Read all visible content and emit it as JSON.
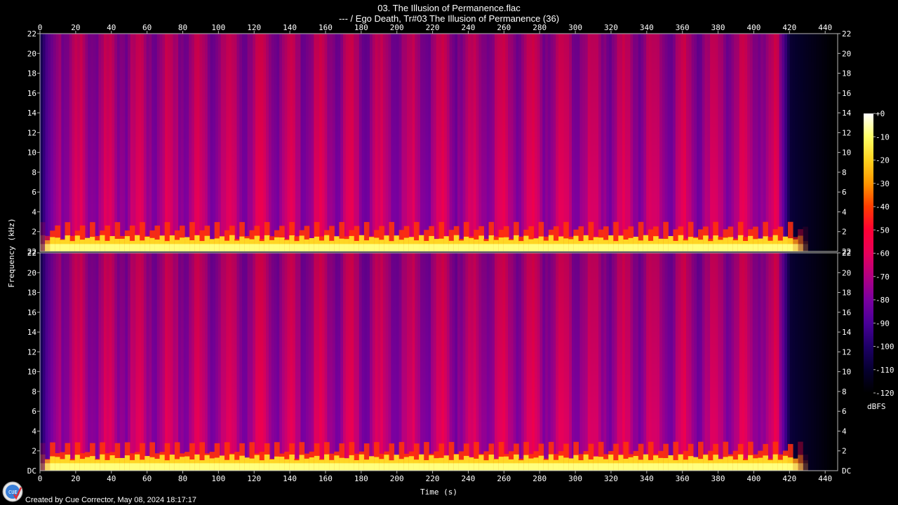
{
  "title": "03. The Illusion of Permanence.flac",
  "subtitle": "--- / Ego Death, Tr#03 The Illusion of Permanence (36)",
  "footer": "Created by Cue Corrector, May 08, 2024 18:17:17",
  "logo_text": "CUE",
  "chart_data": {
    "type": "heatmap",
    "xlabel": "Time (s)",
    "ylabel": "Frequency (kHz)",
    "x_ticks": [
      0,
      20,
      40,
      60,
      80,
      100,
      120,
      140,
      160,
      180,
      200,
      220,
      240,
      260,
      280,
      300,
      320,
      340,
      360,
      380,
      400,
      420,
      440
    ],
    "xlim": [
      0,
      447
    ],
    "channels": [
      {
        "ylim": [
          0,
          22
        ],
        "y_ticks": [
          2,
          4,
          6,
          8,
          10,
          12,
          14,
          16,
          18,
          20,
          22
        ],
        "bottom_tick_label": "22"
      },
      {
        "ylim": [
          0,
          22
        ],
        "y_ticks": [
          2,
          4,
          6,
          8,
          10,
          12,
          14,
          16,
          18,
          20,
          22
        ],
        "bottom_tick_label": "DC"
      }
    ],
    "colorbar": {
      "label": "dBFS",
      "range": [
        -120,
        0
      ],
      "ticks": [
        "+0",
        "-10",
        "-20",
        "-30",
        "-40",
        "-50",
        "-60",
        "-70",
        "-80",
        "-90",
        "-100",
        "-110",
        "-120"
      ],
      "colors": [
        "#ffffff",
        "#ffff66",
        "#ffd21e",
        "#ff9600",
        "#ff3c00",
        "#ff0033",
        "#e6005a",
        "#b20082",
        "#7a00a0",
        "#4a0098",
        "#1e0068",
        "#060030",
        "#000000"
      ]
    },
    "audio_end_s": 420,
    "energy_band_khz": [
      0,
      3
    ]
  }
}
